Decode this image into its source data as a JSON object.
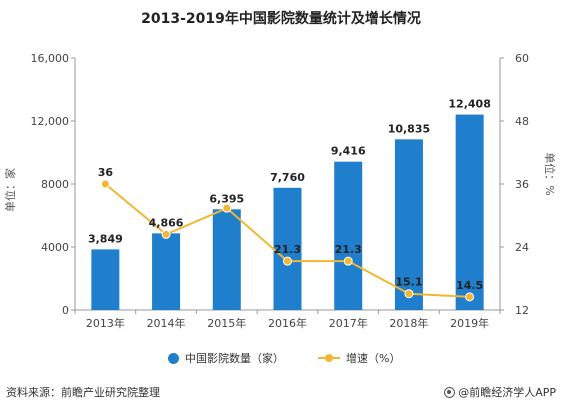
{
  "chart_data": {
    "type": "bar",
    "title": "2013-2019年中国影院数量统计及增长情况",
    "categories": [
      "2013年",
      "2014年",
      "2015年",
      "2016年",
      "2017年",
      "2018年",
      "2019年"
    ],
    "series": [
      {
        "name": "中国影院数量（家）",
        "type": "bar",
        "axis": "left",
        "values": [
          3849,
          4866,
          6395,
          7760,
          9416,
          10835,
          12408
        ],
        "labels": [
          "3,849",
          "4,866",
          "6,395",
          "7,760",
          "9,416",
          "10,835",
          "12,408"
        ],
        "color": "#1f7fcc"
      },
      {
        "name": "增速（%）",
        "type": "line",
        "axis": "right",
        "values": [
          36,
          26.4,
          31.4,
          21.3,
          21.3,
          15.1,
          14.5
        ],
        "labels": [
          "36",
          "",
          "",
          "21.3",
          "21.3",
          "15.1",
          "14.5"
        ],
        "color": "#f2b631"
      }
    ],
    "ylabel": "单位：家",
    "y2label": "单位：%",
    "ylim": [
      0,
      16000
    ],
    "yticks": [
      0,
      4000,
      8000,
      12000,
      16000
    ],
    "ytick_labels": [
      "0",
      "4000",
      "8000",
      "12,000",
      "16,000"
    ],
    "y2lim": [
      12,
      60
    ],
    "y2ticks": [
      12,
      24,
      36,
      48,
      60
    ],
    "y2tick_labels": [
      "12",
      "24",
      "36",
      "48",
      "60"
    ],
    "grid": false,
    "legend": "bottom"
  },
  "footer": {
    "source": "资料来源：前瞻产业研究院整理",
    "brand": "@前瞻经济学人APP"
  }
}
